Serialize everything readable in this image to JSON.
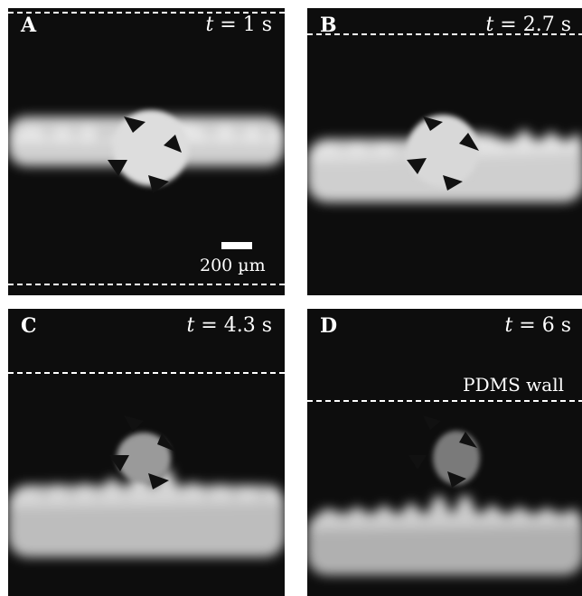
{
  "panels": [
    {
      "letter": "A",
      "time_var": "t",
      "time_rest": " = 1 s"
    },
    {
      "letter": "B",
      "time_var": "t",
      "time_rest": " = 2.7 s"
    },
    {
      "letter": "C",
      "time_var": "t",
      "time_rest": " = 4.3 s"
    },
    {
      "letter": "D",
      "time_var": "t",
      "time_rest": " = 6 s"
    }
  ],
  "scale_label": "200 µm",
  "wall_label": "PDMS wall",
  "colors": {
    "background": "#0d0d0d",
    "foreground": "#ffffff"
  }
}
